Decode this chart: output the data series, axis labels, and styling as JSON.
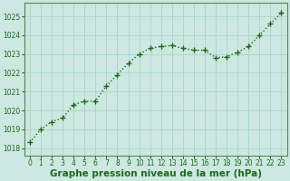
{
  "x": [
    0,
    1,
    2,
    3,
    4,
    5,
    6,
    7,
    8,
    9,
    10,
    11,
    12,
    13,
    14,
    15,
    16,
    17,
    18,
    19,
    20,
    21,
    22,
    23
  ],
  "y": [
    1018.3,
    1019.0,
    1019.4,
    1019.6,
    1020.3,
    1020.5,
    1020.5,
    1021.3,
    1021.9,
    1022.5,
    1023.0,
    1023.3,
    1023.4,
    1023.45,
    1023.3,
    1023.2,
    1023.2,
    1022.8,
    1022.85,
    1023.1,
    1023.4,
    1024.0,
    1024.6,
    1025.2
  ],
  "line_color": "#1a6b1a",
  "marker": "+",
  "marker_size": 4,
  "marker_linewidth": 1.0,
  "bg_color": "#cce8e0",
  "grid_color": "#aad4c8",
  "xlabel": "Graphe pression niveau de la mer (hPa)",
  "xlabel_fontsize": 7.5,
  "xlabel_color": "#1a6b1a",
  "ylabel_ticks": [
    1018,
    1019,
    1020,
    1021,
    1022,
    1023,
    1024,
    1025
  ],
  "ylim": [
    1017.6,
    1025.7
  ],
  "xlim": [
    -0.5,
    23.5
  ],
  "xtick_labels": [
    "0",
    "1",
    "2",
    "3",
    "4",
    "5",
    "6",
    "7",
    "8",
    "9",
    "10",
    "11",
    "12",
    "13",
    "14",
    "15",
    "16",
    "17",
    "18",
    "19",
    "20",
    "21",
    "22",
    "23"
  ],
  "tick_color": "#1a6b1a",
  "tick_fontsize": 5.5,
  "spine_color": "#558855",
  "linewidth": 1.0,
  "linestyle": ":"
}
